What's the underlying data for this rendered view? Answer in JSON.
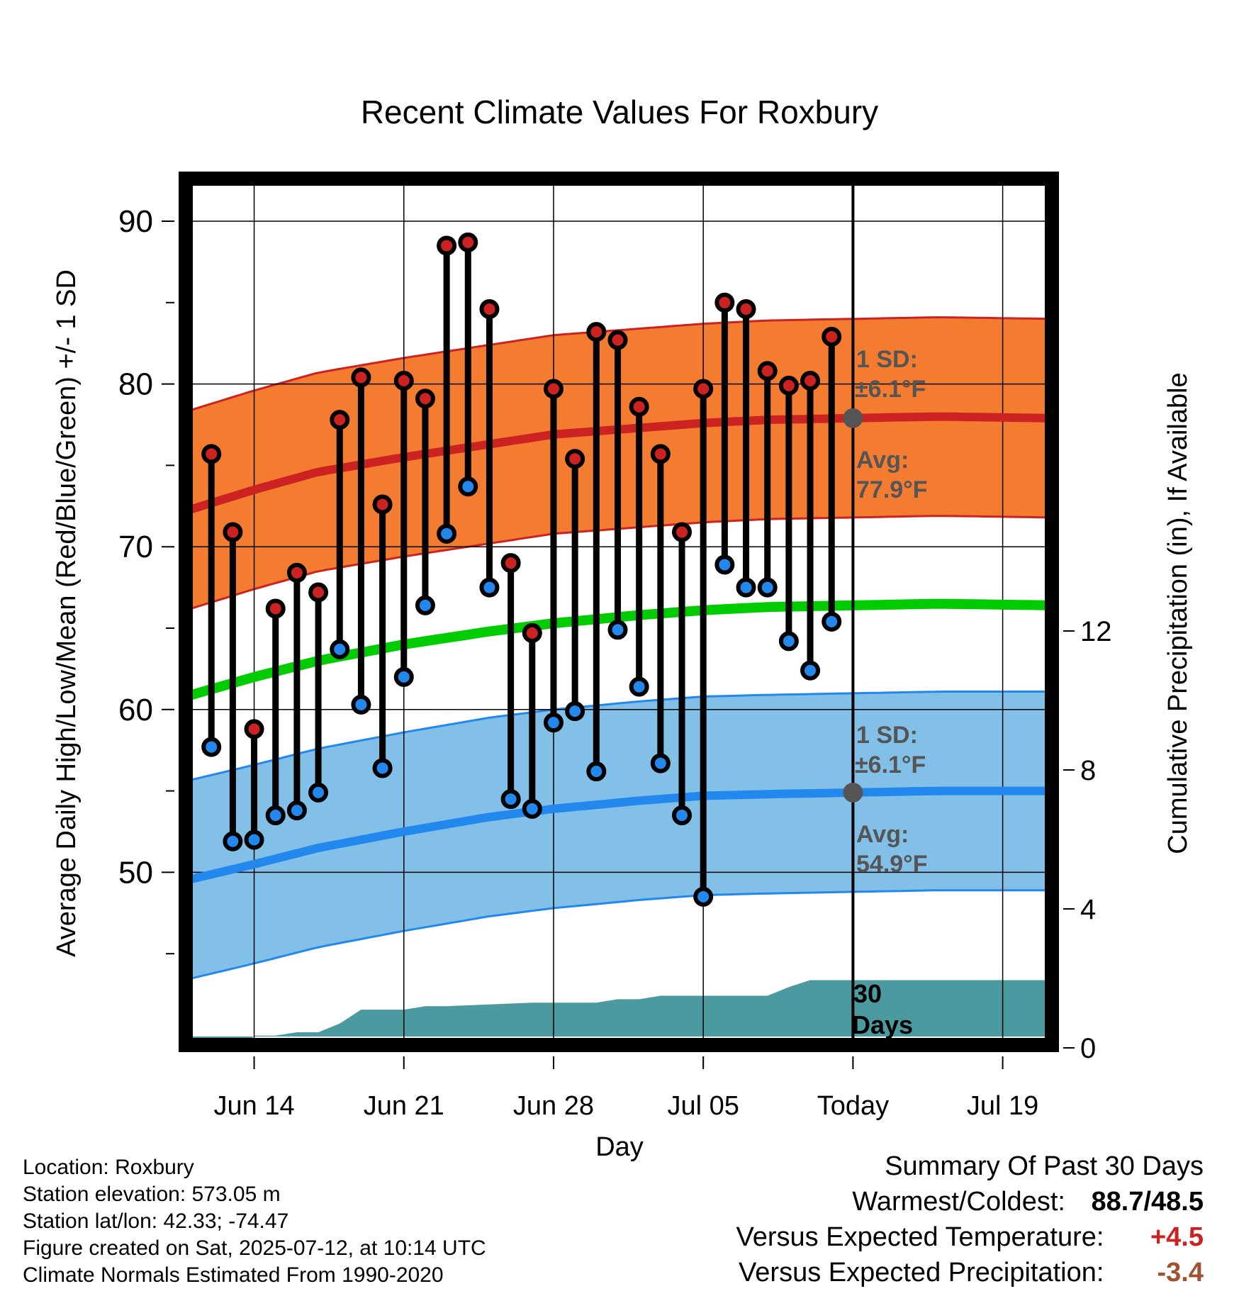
{
  "chart_data": {
    "type": "line",
    "title": "Recent Climate Values For Roxbury",
    "xlabel": "Day",
    "ylabel_left": "Average Daily High/Low/Mean (Red/Blue/Green) +/- 1 SD",
    "ylabel_right": "Cumulative Precipitation (in), If Available",
    "ylim": [
      40,
      95
    ],
    "y2lim": [
      0,
      24
    ],
    "x_ticks": [
      {
        "day": 14,
        "label": "Jun 14"
      },
      {
        "day": 21,
        "label": "Jun 21"
      },
      {
        "day": 28,
        "label": "Jun 28"
      },
      {
        "day": 35,
        "label": "Jul 05"
      },
      {
        "day": 42,
        "label": "Today"
      },
      {
        "day": 49,
        "label": "Jul 19"
      }
    ],
    "xlim": [
      10.8,
      51.3
    ],
    "y_ticks": [
      50,
      60,
      70,
      80,
      90
    ],
    "y2_ticks": [
      0,
      4,
      8,
      12
    ],
    "today_day": 42,
    "colors": {
      "high": "#cc2222",
      "low": "#2288ee",
      "mean": "#00cc00",
      "high_band": "#f47c30",
      "low_band": "#82c0e8",
      "precip": "#4a9aa0",
      "annotation": "#555555"
    },
    "normals": {
      "days": [
        10.8,
        14,
        17,
        21,
        25,
        28,
        32,
        35,
        38,
        42,
        46,
        51.3
      ],
      "avg_high": [
        72.2,
        73.5,
        74.6,
        75.5,
        76.3,
        76.9,
        77.3,
        77.6,
        77.8,
        77.9,
        78.0,
        77.9
      ],
      "avg_low": [
        49.5,
        50.5,
        51.5,
        52.5,
        53.4,
        53.9,
        54.4,
        54.7,
        54.8,
        54.9,
        55.0,
        55.0
      ],
      "avg_mean": [
        60.8,
        62.0,
        63.0,
        64.0,
        64.8,
        65.3,
        65.8,
        66.1,
        66.3,
        66.4,
        66.5,
        66.4
      ],
      "sd": 6.1
    },
    "observations": {
      "days": [
        12,
        13,
        14,
        15,
        16,
        17,
        18,
        19,
        20,
        21,
        22,
        23,
        24,
        25,
        26,
        27,
        28,
        29,
        30,
        31,
        32,
        33,
        34,
        35,
        36,
        37,
        38,
        39,
        40,
        41
      ],
      "highs": [
        75.7,
        70.9,
        58.8,
        66.2,
        68.4,
        67.2,
        77.8,
        80.4,
        72.6,
        80.2,
        79.1,
        88.5,
        88.7,
        84.6,
        69.0,
        64.7,
        79.7,
        75.4,
        83.2,
        82.7,
        78.6,
        75.7,
        70.9,
        79.7,
        85.0,
        84.6,
        80.8,
        79.9,
        80.2,
        82.9
      ],
      "lows": [
        57.7,
        51.9,
        52.0,
        53.5,
        53.8,
        54.9,
        63.7,
        60.3,
        56.4,
        62.0,
        66.4,
        70.8,
        73.7,
        67.5,
        54.5,
        53.9,
        59.2,
        59.9,
        56.2,
        64.9,
        61.4,
        56.7,
        53.5,
        48.5,
        68.9,
        67.5,
        67.5,
        64.2,
        62.4,
        65.4
      ]
    },
    "precipitation": {
      "days": [
        10.8,
        13.5,
        14,
        15,
        16,
        17,
        18,
        19,
        20,
        21,
        22,
        23,
        27,
        28,
        30,
        31,
        32,
        33,
        37,
        38,
        39,
        40,
        41,
        42,
        51.3
      ],
      "cumulative": [
        0,
        0,
        0.35,
        0.35,
        0.45,
        0.45,
        0.7,
        1.1,
        1.1,
        1.1,
        1.2,
        1.2,
        1.3,
        1.3,
        1.3,
        1.4,
        1.4,
        1.5,
        1.5,
        1.5,
        1.75,
        1.95,
        1.95,
        1.95,
        1.95
      ]
    },
    "annotations": {
      "high_sd": "1 SD:",
      "high_sd_value": "±6.1°F",
      "high_avg": "Avg:",
      "high_avg_value": "77.9°F",
      "low_sd": "1 SD:",
      "low_sd_value": "±6.1°F",
      "low_avg": "Avg:",
      "low_avg_value": "54.9°F",
      "window_line1": "30",
      "window_line2": "Days"
    }
  },
  "info": {
    "location": "Location: Roxbury",
    "elevation": "Station elevation: 573.05 m",
    "latlon": "Station lat/lon: 42.33; -74.47",
    "created": "Figure created on Sat, 2025-07-12, at 10:14 UTC",
    "normals": "Climate Normals Estimated From 1990-2020"
  },
  "summary": {
    "title": "Summary Of Past 30 Days",
    "warm_cold_label": "Warmest/Coldest:",
    "warm_cold_value": "88.7/48.5",
    "temp_label": "Versus Expected Temperature:",
    "temp_value": "+4.5",
    "temp_color": "#cc2222",
    "precip_label": "Versus Expected Precipitation:",
    "precip_value": "-3.4",
    "precip_color": "#a0522d"
  }
}
